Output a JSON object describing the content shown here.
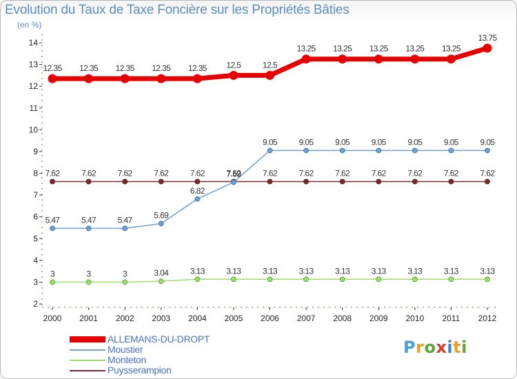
{
  "title": "Evolution du Taux de Taxe Foncière sur les Propriétés Bâties",
  "unit": "(en %)",
  "logo": {
    "letters": [
      "P",
      "r",
      "o",
      "x",
      "i",
      "t",
      "i"
    ],
    "colors": [
      "#4a9fd8",
      "#e8a020",
      "#5aa83a",
      "#d83a2a",
      "#3a7fd0",
      "#e8a020",
      "#5aa83a"
    ]
  },
  "chart_data": {
    "type": "line",
    "title": "Evolution du Taux de Taxe Foncière sur les Propriétés Bâties",
    "ylabel": "(en %)",
    "xlabel": "",
    "ylim": [
      2,
      14
    ],
    "yticks": [
      "2",
      "3",
      "4",
      "5",
      "6",
      "7",
      "8",
      "9",
      "10",
      "11",
      "12",
      "13",
      "14"
    ],
    "grid": false,
    "legend_position": "bottom-left",
    "x": [
      "2000",
      "2001",
      "2002",
      "2003",
      "2004",
      "2005",
      "2006",
      "2007",
      "2008",
      "2009",
      "2010",
      "2011",
      "2012"
    ],
    "series": [
      {
        "name": "ALLEMANS-DU-DROPT",
        "color": "#e60000",
        "values": [
          12.35,
          12.35,
          12.35,
          12.35,
          12.35,
          12.5,
          12.5,
          13.25,
          13.25,
          13.25,
          13.25,
          13.25,
          13.75
        ],
        "labels": [
          "12.35",
          "12.35",
          "12.35",
          "12.35",
          "12.35",
          "12.5",
          "12.5",
          "13.25",
          "13.25",
          "13.25",
          "13.25",
          "13.25",
          "13.75"
        ]
      },
      {
        "name": "Moustier",
        "color": "#6fa0d0",
        "values": [
          5.47,
          5.47,
          5.47,
          5.69,
          6.82,
          7.59,
          9.05,
          9.05,
          9.05,
          9.05,
          9.05,
          9.05,
          9.05
        ],
        "labels": [
          "5.47",
          "5.47",
          "5.47",
          "5.69",
          "6.82",
          "7.59",
          "9.05",
          "9.05",
          "9.05",
          "9.05",
          "9.05",
          "9.05",
          "9.05"
        ]
      },
      {
        "name": "Monteton",
        "color": "#9fdd6a",
        "values": [
          3,
          3,
          3,
          3.04,
          3.13,
          3.13,
          3.13,
          3.13,
          3.13,
          3.13,
          3.13,
          3.13,
          3.13
        ],
        "labels": [
          "3",
          "3",
          "3",
          "3.04",
          "3.13",
          "3.13",
          "3.13",
          "3.13",
          "3.13",
          "3.13",
          "3.13",
          "3.13",
          "3.13"
        ]
      },
      {
        "name": "Puysserampion",
        "color": "#7a2a2a",
        "values": [
          7.62,
          7.62,
          7.62,
          7.62,
          7.62,
          7.62,
          7.62,
          7.62,
          7.62,
          7.62,
          7.62,
          7.62,
          7.62
        ],
        "labels": [
          "7.62",
          "7.62",
          "7.62",
          "7.62",
          "7.62",
          "7.62",
          "7.62",
          "7.62",
          "7.62",
          "7.62",
          "7.62",
          "7.62",
          "7.62"
        ]
      }
    ]
  }
}
